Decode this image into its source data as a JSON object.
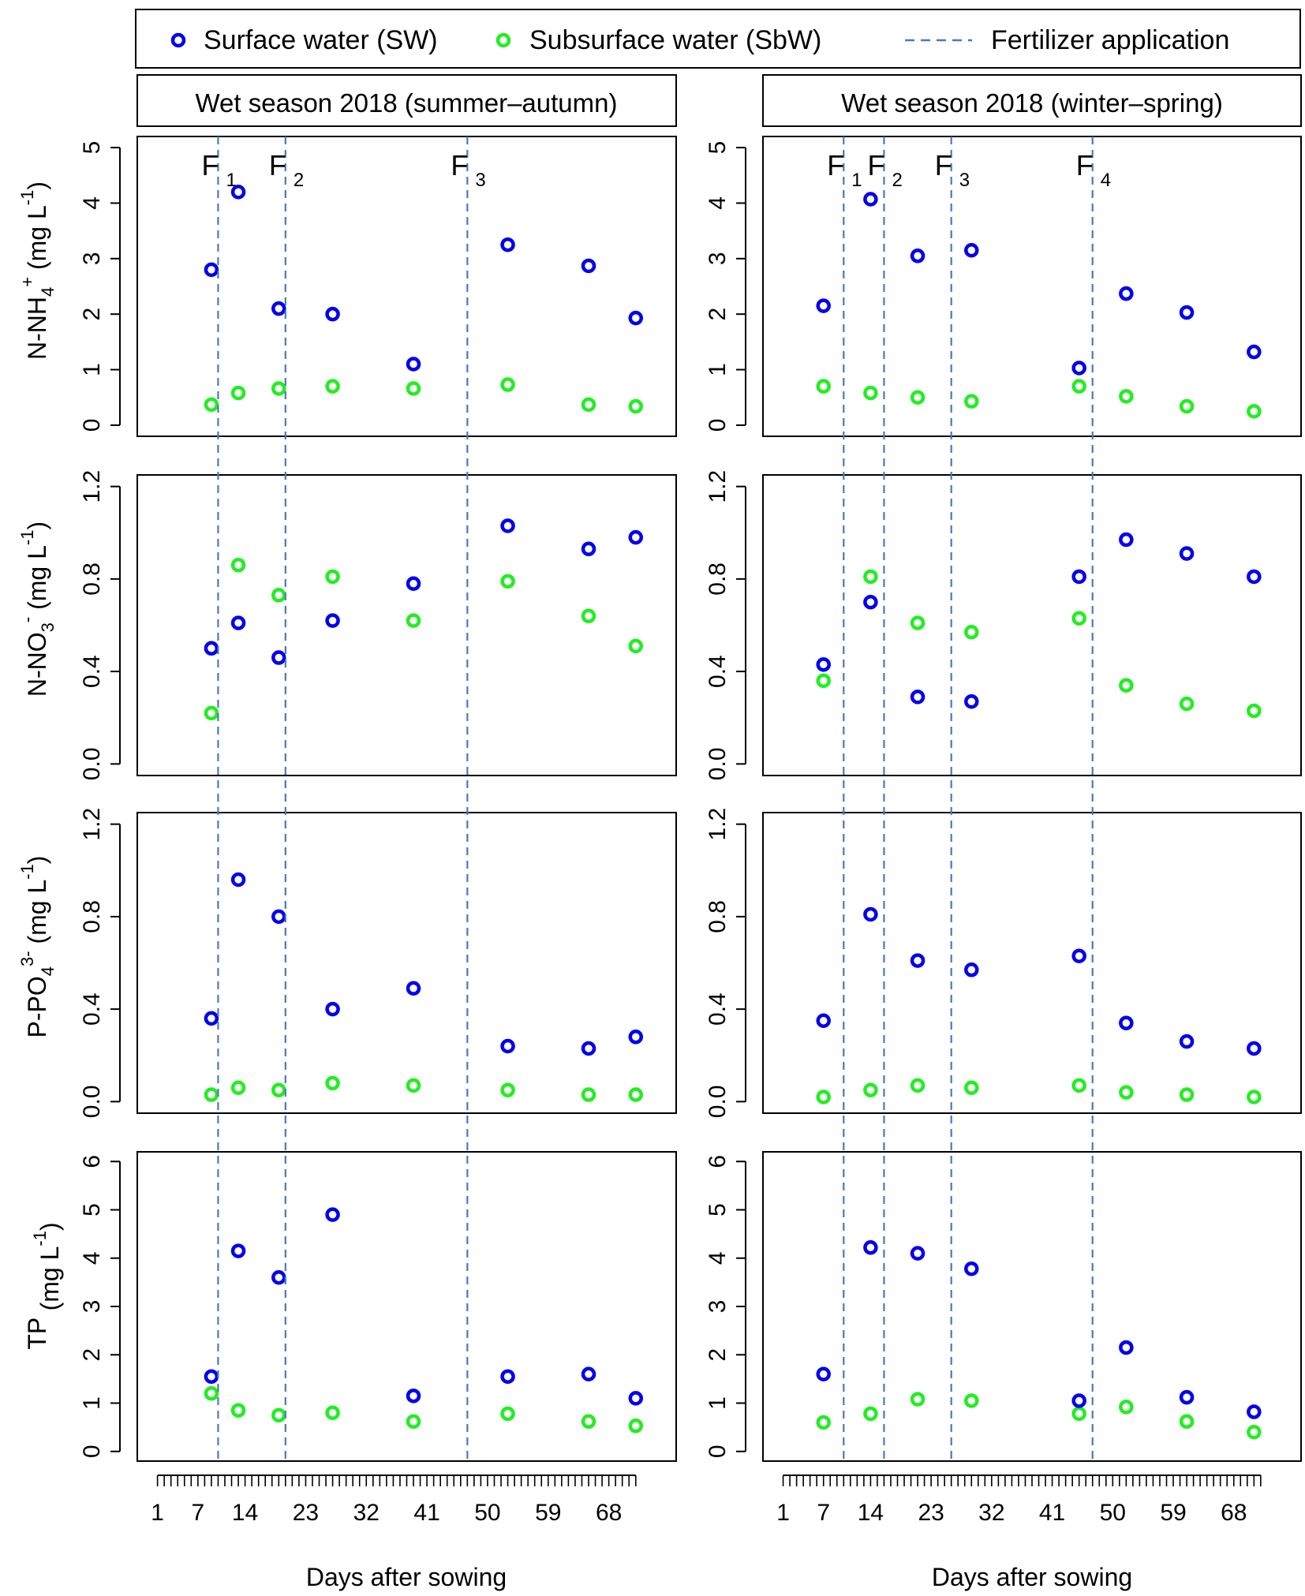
{
  "legend": {
    "items": [
      {
        "label": "Surface water (SW)",
        "kind": "circle",
        "color": "#0000ee"
      },
      {
        "label": "Subsurface water (SbW)",
        "kind": "circle",
        "color": "#22ee22"
      },
      {
        "label": "Fertilizer application",
        "kind": "dashed",
        "color": "#4a7ab8"
      }
    ]
  },
  "panels": [
    {
      "title": "Wet season 2018 (summer–autumn)",
      "xlabel": "Days after sowing"
    },
    {
      "title": "Wet season 2018 (winter–spring)",
      "xlabel": "Days after sowing"
    }
  ],
  "rows": [
    {
      "ylabel_main": "N-NH",
      "ylabel_sub": "4",
      "ylabel_sup": "+",
      "ylabel_unit": " (mg L",
      "ylabel_unit_sup": "-1",
      "ylabel_close": ")"
    },
    {
      "ylabel_main": "N-NO",
      "ylabel_sub": "3",
      "ylabel_sup": "-",
      "ylabel_unit": " (mg L",
      "ylabel_unit_sup": "-1",
      "ylabel_close": ")"
    },
    {
      "ylabel_main": "P-PO",
      "ylabel_sub": "4",
      "ylabel_sup": "3-",
      "ylabel_unit": " (mg L",
      "ylabel_unit_sup": "-1",
      "ylabel_close": ")"
    },
    {
      "ylabel_main": "TP",
      "ylabel_sub": "",
      "ylabel_sup": "",
      "ylabel_unit": " (mg L",
      "ylabel_unit_sup": "-1",
      "ylabel_close": ")"
    }
  ],
  "chart_data": {
    "type": "scatter",
    "x_axis": {
      "label": "Days after sowing",
      "range": [
        -2,
        78
      ],
      "ticks": [
        1,
        7,
        14,
        23,
        32,
        41,
        50,
        59,
        68
      ],
      "tick_labels": [
        "1",
        "7",
        "14",
        "23",
        "32",
        "41",
        "50",
        "59",
        "68"
      ],
      "minor_ticks_every": 1
    },
    "y_axes": [
      {
        "range": [
          -0.2,
          5.2
        ],
        "ticks": [
          0,
          1,
          2,
          3,
          4,
          5
        ],
        "tick_labels": [
          "0",
          "1",
          "2",
          "3",
          "4",
          "5"
        ]
      },
      {
        "range": [
          -0.05,
          1.25
        ],
        "ticks": [
          0,
          0.4,
          0.8,
          1.2
        ],
        "tick_labels": [
          "0.0",
          "0.4",
          "0.8",
          "1.2"
        ]
      },
      {
        "range": [
          -0.05,
          1.25
        ],
        "ticks": [
          0,
          0.4,
          0.8,
          1.2
        ],
        "tick_labels": [
          "0.0",
          "0.4",
          "0.8",
          "1.2"
        ]
      },
      {
        "range": [
          -0.2,
          6.2
        ],
        "ticks": [
          0,
          1,
          2,
          3,
          4,
          5,
          6
        ],
        "tick_labels": [
          "0",
          "1",
          "2",
          "3",
          "4",
          "5",
          "6"
        ]
      }
    ],
    "fertilizer": [
      {
        "days": [
          10,
          20,
          47
        ],
        "labels": [
          "F",
          "F",
          "F"
        ],
        "subs": [
          "1",
          "2",
          "3"
        ]
      },
      {
        "days": [
          10,
          16,
          26,
          47
        ],
        "labels": [
          "F",
          "F",
          "F",
          "F"
        ],
        "subs": [
          "1",
          "2",
          "3",
          "4"
        ]
      }
    ],
    "panels": [
      {
        "name": "Wet season 2018 (summer–autumn)",
        "x": [
          9,
          13,
          19,
          27,
          39,
          53,
          65,
          72
        ],
        "rows": [
          {
            "variable": "N-NH4+",
            "SW": [
              2.8,
              4.2,
              2.1,
              2.0,
              1.1,
              3.25,
              2.87,
              1.93
            ],
            "SbW": [
              0.37,
              0.58,
              0.66,
              0.7,
              0.66,
              0.73,
              0.37,
              0.34
            ]
          },
          {
            "variable": "N-NO3-",
            "SW": [
              0.5,
              0.61,
              0.46,
              0.62,
              0.78,
              1.03,
              0.93,
              0.98
            ],
            "SbW": [
              0.22,
              0.86,
              0.73,
              0.81,
              0.62,
              0.79,
              0.64,
              0.51
            ]
          },
          {
            "variable": "P-PO43-",
            "SW": [
              0.36,
              0.96,
              0.8,
              0.4,
              0.49,
              0.24,
              0.23,
              0.28
            ],
            "SbW": [
              0.03,
              0.06,
              0.05,
              0.08,
              0.07,
              0.05,
              0.03,
              0.03
            ]
          },
          {
            "variable": "TP",
            "SW": [
              1.55,
              4.15,
              3.6,
              4.9,
              1.15,
              1.55,
              1.6,
              1.1
            ],
            "SbW": [
              1.2,
              0.85,
              0.75,
              0.8,
              0.62,
              0.78,
              0.62,
              0.53
            ]
          }
        ]
      },
      {
        "name": "Wet season 2018 (winter–spring)",
        "x": [
          7,
          14,
          21,
          29,
          45,
          52,
          61,
          71
        ],
        "rows": [
          {
            "variable": "N-NH4+",
            "SW": [
              2.15,
              4.07,
              3.05,
              3.15,
              1.03,
              2.37,
              2.03,
              1.32
            ],
            "SbW": [
              0.7,
              0.58,
              0.5,
              0.43,
              0.7,
              0.52,
              0.34,
              0.25
            ]
          },
          {
            "variable": "N-NO3-",
            "SW": [
              0.43,
              0.7,
              0.29,
              0.27,
              0.81,
              0.97,
              0.91,
              0.81
            ],
            "SbW": [
              0.36,
              0.81,
              0.61,
              0.57,
              0.63,
              0.34,
              0.26,
              0.23
            ]
          },
          {
            "variable": "P-PO43-",
            "SW": [
              0.35,
              0.81,
              0.61,
              0.57,
              0.63,
              0.34,
              0.26,
              0.23
            ],
            "SbW": [
              0.02,
              0.05,
              0.07,
              0.06,
              0.07,
              0.04,
              0.03,
              0.02
            ]
          },
          {
            "variable": "TP",
            "SW": [
              1.6,
              4.22,
              4.1,
              3.78,
              1.05,
              2.15,
              1.12,
              0.82
            ],
            "SbW": [
              0.6,
              0.78,
              1.08,
              1.05,
              0.78,
              0.92,
              0.62,
              0.4
            ]
          }
        ]
      }
    ]
  }
}
